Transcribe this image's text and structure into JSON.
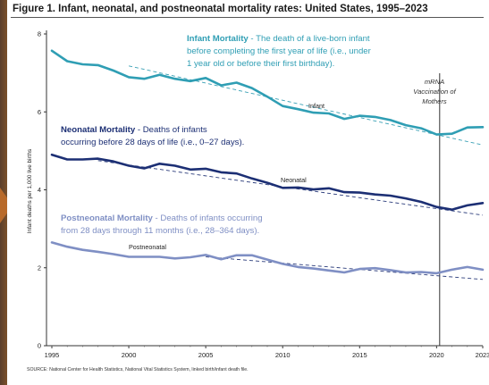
{
  "figure": {
    "title": "Figure 1. Infant, neonatal, and postneonatal mortality rates: United States, 1995–2023",
    "source": "SOURCE: National Center for Health Statistics, National Vital Statistics System, linked birth/infant death file."
  },
  "colors": {
    "infant": "#2f9eb4",
    "neonatal": "#1c2f74",
    "postneonatal": "#7f8fc4",
    "trend_infant": "#3aa0b5",
    "trend_other": "#2a3b7a"
  },
  "annotations": {
    "infant_title": "Infant Mortality",
    "infant_desc_1": " - The death of a live-born infant",
    "infant_desc_2": "before completing the first year of life (i.e., under",
    "infant_desc_3": "1 year old or before their first birthday).",
    "neonatal_title": "Neonatal Mortality",
    "neonatal_desc_1": " - Deaths of infants",
    "neonatal_desc_2": "occurring before 28 days of life (i.e., 0–27 days).",
    "postneonatal_title": "Postneonatal Mortality",
    "postneonatal_desc_1": " - Deaths of infants occurring",
    "postneonatal_desc_2": "from 28 days through 11 months (i.e., 28–364 days).",
    "mrna_1": "mRNA",
    "mrna_2": "Vaccination of",
    "mrna_3": "Mothers",
    "label_infant": "Infant",
    "label_neonatal": "Neonatal",
    "label_postneonatal": "Postneonatal"
  },
  "chart_data": {
    "type": "line",
    "title": "Figure 1. Infant, neonatal, and postneonatal mortality rates: United States, 1995–2023",
    "ylabel": "Infant deaths per 1,000 live births",
    "xlabel": "",
    "xlim": [
      1995,
      2023
    ],
    "ylim": [
      0,
      8
    ],
    "yticks": [
      0,
      2,
      4,
      6,
      8
    ],
    "xticks": [
      "1995",
      "2000",
      "2005",
      "2010",
      "2015",
      "2020",
      "2023"
    ],
    "xtick_values": [
      1995,
      2000,
      2005,
      2010,
      2015,
      2020,
      2023
    ],
    "grid": false,
    "vertical_marker_x": 2020.2,
    "x": [
      1995,
      1996,
      1997,
      1998,
      1999,
      2000,
      2001,
      2002,
      2003,
      2004,
      2005,
      2006,
      2007,
      2008,
      2009,
      2010,
      2011,
      2012,
      2013,
      2014,
      2015,
      2016,
      2017,
      2018,
      2019,
      2020,
      2021,
      2022,
      2023
    ],
    "series": [
      {
        "name": "Infant",
        "values": [
          7.57,
          7.3,
          7.22,
          7.2,
          7.06,
          6.89,
          6.85,
          6.95,
          6.85,
          6.79,
          6.87,
          6.68,
          6.75,
          6.61,
          6.39,
          6.15,
          6.07,
          5.98,
          5.96,
          5.82,
          5.9,
          5.87,
          5.79,
          5.66,
          5.58,
          5.42,
          5.44,
          5.6,
          5.61
        ]
      },
      {
        "name": "Neonatal",
        "values": [
          4.9,
          4.78,
          4.78,
          4.8,
          4.73,
          4.62,
          4.55,
          4.67,
          4.62,
          4.52,
          4.54,
          4.45,
          4.42,
          4.29,
          4.18,
          4.05,
          4.06,
          4.01,
          4.04,
          3.94,
          3.93,
          3.88,
          3.85,
          3.78,
          3.69,
          3.56,
          3.49,
          3.6,
          3.66
        ]
      },
      {
        "name": "Postneonatal",
        "values": [
          2.65,
          2.54,
          2.46,
          2.41,
          2.35,
          2.28,
          2.28,
          2.28,
          2.24,
          2.27,
          2.33,
          2.22,
          2.32,
          2.32,
          2.21,
          2.1,
          2.02,
          1.98,
          1.93,
          1.88,
          1.97,
          1.99,
          1.94,
          1.88,
          1.89,
          1.86,
          1.95,
          2.02,
          1.95
        ]
      }
    ],
    "trendlines": [
      {
        "series": "Infant",
        "x": [
          2000,
          2023
        ],
        "values": [
          7.18,
          5.15
        ]
      },
      {
        "series": "Neonatal",
        "x": [
          1998,
          2023
        ],
        "values": [
          4.75,
          3.35
        ]
      },
      {
        "series": "Postneonatal",
        "x": [
          2005,
          2023
        ],
        "values": [
          2.28,
          1.7
        ]
      }
    ]
  }
}
